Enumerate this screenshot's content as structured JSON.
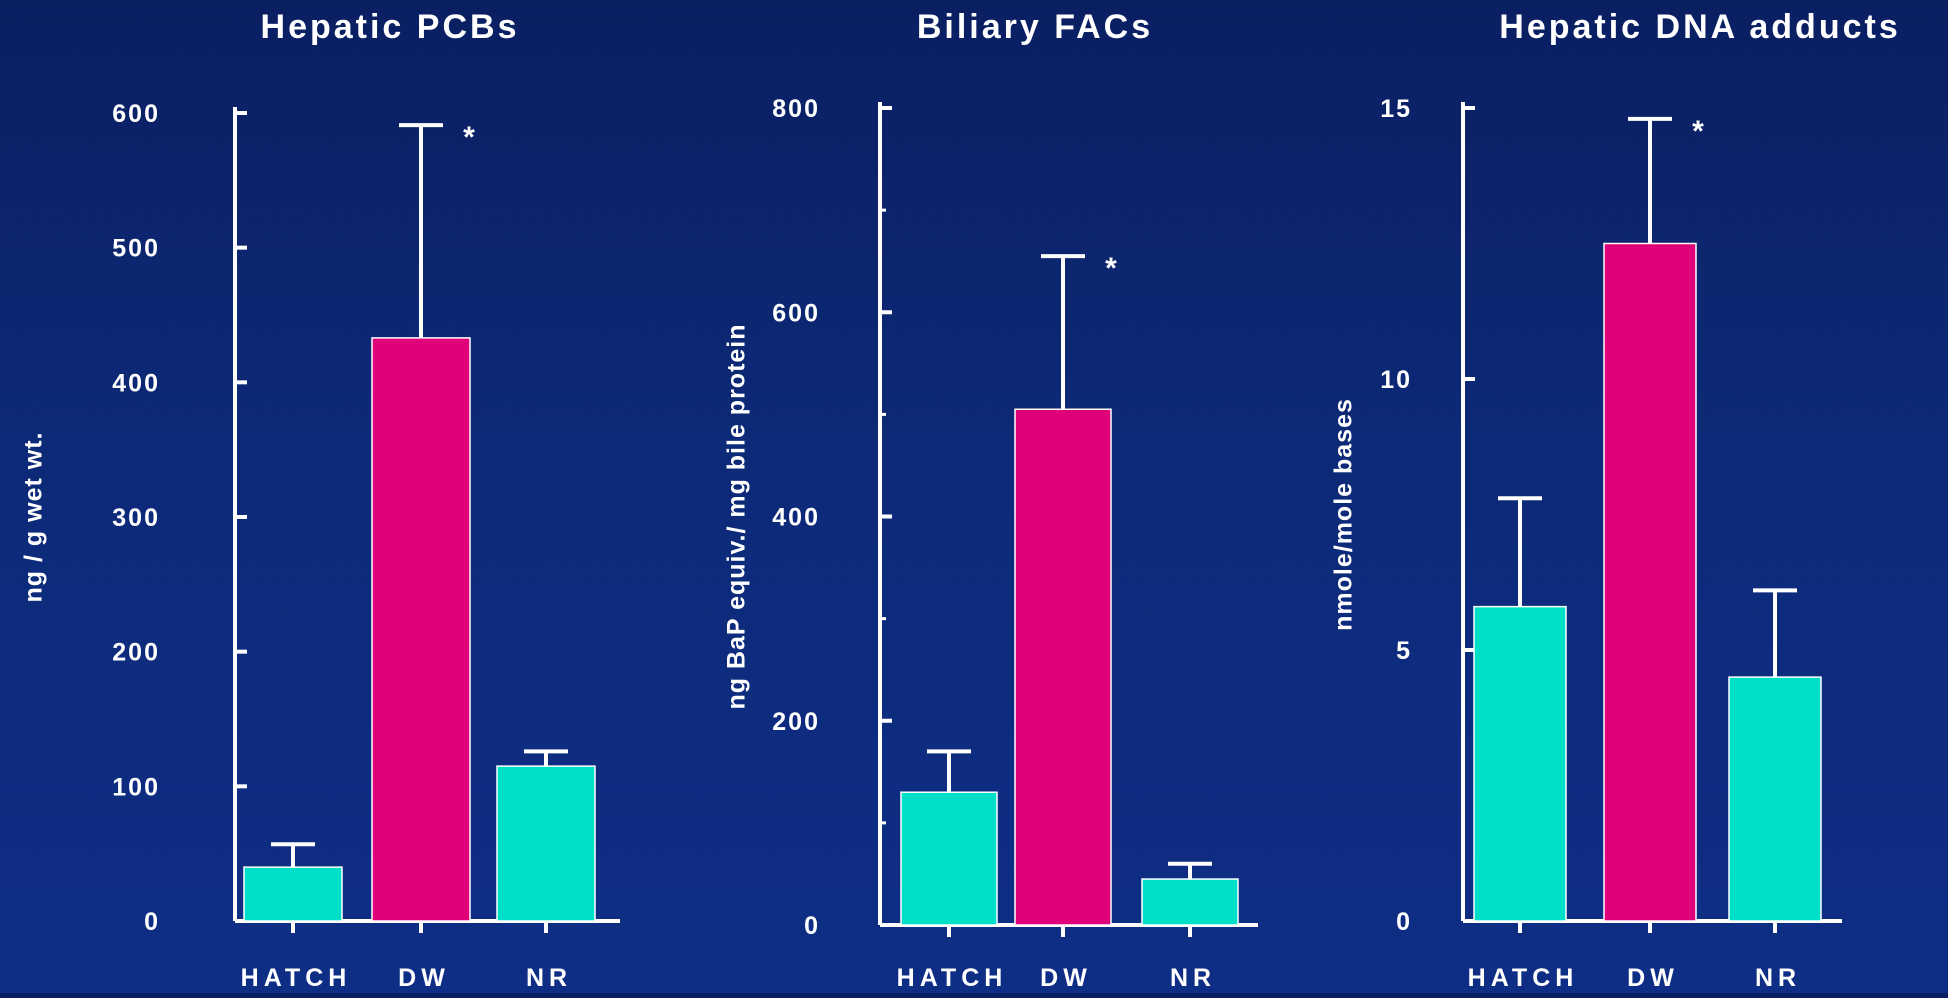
{
  "colors": {
    "background_top": "#0a1f62",
    "background_bottom": "#0e2e86",
    "axis": "#ffffff",
    "reference_bar": "#00e0c8",
    "highlight_bar": "#e0007a",
    "text": "#ffffff"
  },
  "chart_data": [
    {
      "type": "bar",
      "title": "Hepatic PCBs",
      "ylabel": "ng / g wet wt.",
      "categories": [
        "HATCH",
        "DW",
        "NR"
      ],
      "values": [
        40,
        433,
        115
      ],
      "error": [
        17,
        158,
        11
      ],
      "bar_colors": [
        "reference",
        "highlight",
        "reference"
      ],
      "significant": [
        false,
        true,
        false
      ],
      "significance_marker": "*",
      "ylim": [
        0,
        600
      ],
      "yticks": [
        0,
        100,
        200,
        300,
        400,
        500,
        600
      ],
      "ytick_labels": [
        "0",
        "100",
        "200",
        "300",
        "400",
        "500",
        "600"
      ],
      "minor_ticks": false,
      "grid": false,
      "legend": "none"
    },
    {
      "type": "bar",
      "title": "Biliary FACs",
      "ylabel": "ng BaP equiv./ mg bile protein",
      "categories": [
        "HATCH",
        "DW",
        "NR"
      ],
      "values": [
        130,
        505,
        45
      ],
      "error": [
        40,
        150,
        15
      ],
      "bar_colors": [
        "reference",
        "highlight",
        "reference"
      ],
      "significant": [
        false,
        true,
        false
      ],
      "significance_marker": "*",
      "ylim": [
        0,
        800
      ],
      "yticks": [
        0,
        200,
        400,
        600,
        800
      ],
      "ytick_labels": [
        "0",
        "200",
        "400",
        "600",
        "800"
      ],
      "minor_ticks": true,
      "grid": false,
      "legend": "none"
    },
    {
      "type": "bar",
      "title": "Hepatic DNA adducts",
      "ylabel": "nmole/mole bases",
      "categories": [
        "HATCH",
        "DW",
        "NR"
      ],
      "values": [
        5.8,
        12.5,
        4.5
      ],
      "error": [
        2.0,
        2.3,
        1.6
      ],
      "bar_colors": [
        "reference",
        "highlight",
        "reference"
      ],
      "significant": [
        false,
        true,
        false
      ],
      "significance_marker": "*",
      "ylim": [
        0,
        15
      ],
      "yticks": [
        0,
        5,
        10,
        15
      ],
      "ytick_labels": [
        "0",
        "5",
        "10",
        "15"
      ],
      "minor_ticks": false,
      "grid": false,
      "legend": "none"
    }
  ]
}
